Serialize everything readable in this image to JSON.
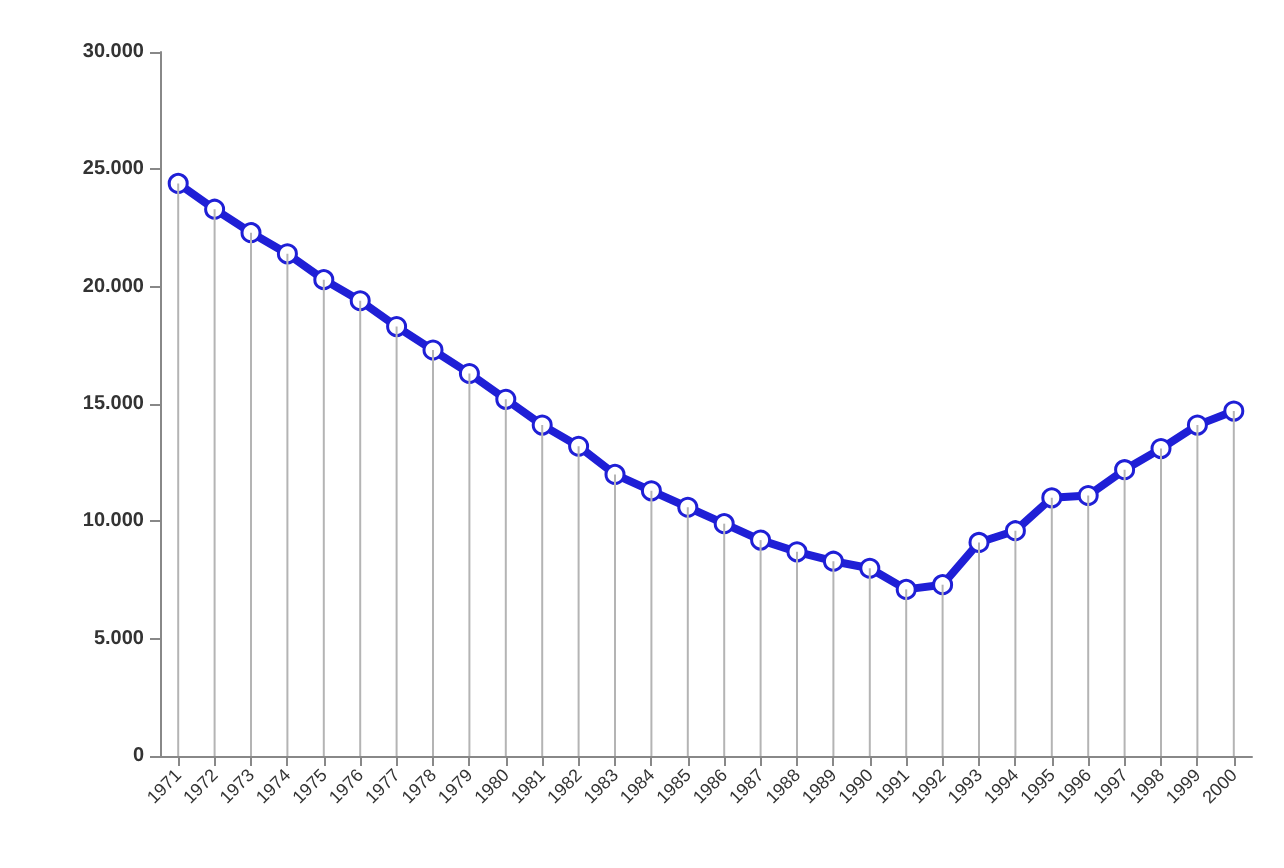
{
  "chart_data": {
    "type": "line",
    "categories": [
      "1971",
      "1972",
      "1973",
      "1974",
      "1975",
      "1976",
      "1977",
      "1978",
      "1979",
      "1980",
      "1981",
      "1982",
      "1983",
      "1984",
      "1985",
      "1986",
      "1987",
      "1988",
      "1989",
      "1990",
      "1991",
      "1992",
      "1993",
      "1994",
      "1995",
      "1996",
      "1997",
      "1998",
      "1999",
      "2000"
    ],
    "series": [
      {
        "type": "bar",
        "color": "#b4b4b4",
        "values": [
          24400,
          23300,
          22300,
          21400,
          20300,
          19400,
          18300,
          17300,
          16300,
          15200,
          14100,
          13200,
          12000,
          11300,
          10600,
          9900,
          9200,
          8700,
          8300,
          8000,
          7100,
          7300,
          9100,
          9600,
          11000,
          11100,
          12200,
          13100,
          14100,
          14700
        ]
      },
      {
        "color": "#1f1fd6",
        "values": [
          24400,
          23300,
          22300,
          21400,
          20300,
          19400,
          18300,
          17300,
          16300,
          15200,
          14100,
          13200,
          12000,
          11300,
          10600,
          9900,
          9200,
          8700,
          8300,
          8000,
          7100,
          7300,
          9100,
          9600,
          11000,
          11100,
          12200,
          13100,
          14100,
          14700
        ]
      }
    ],
    "ylim": [
      0,
      30000
    ],
    "yticks": [
      {
        "value": 0,
        "label": "0"
      },
      {
        "value": 5000,
        "label": "5.000"
      },
      {
        "value": 10000,
        "label": "10.000"
      },
      {
        "value": 15000,
        "label": "15.000"
      },
      {
        "value": 20000,
        "label": "20.000"
      },
      {
        "value": 25000,
        "label": "25.000"
      },
      {
        "value": 30000,
        "label": "30.000"
      }
    ],
    "grid": false,
    "marker": "circle",
    "line_style": "solid"
  }
}
